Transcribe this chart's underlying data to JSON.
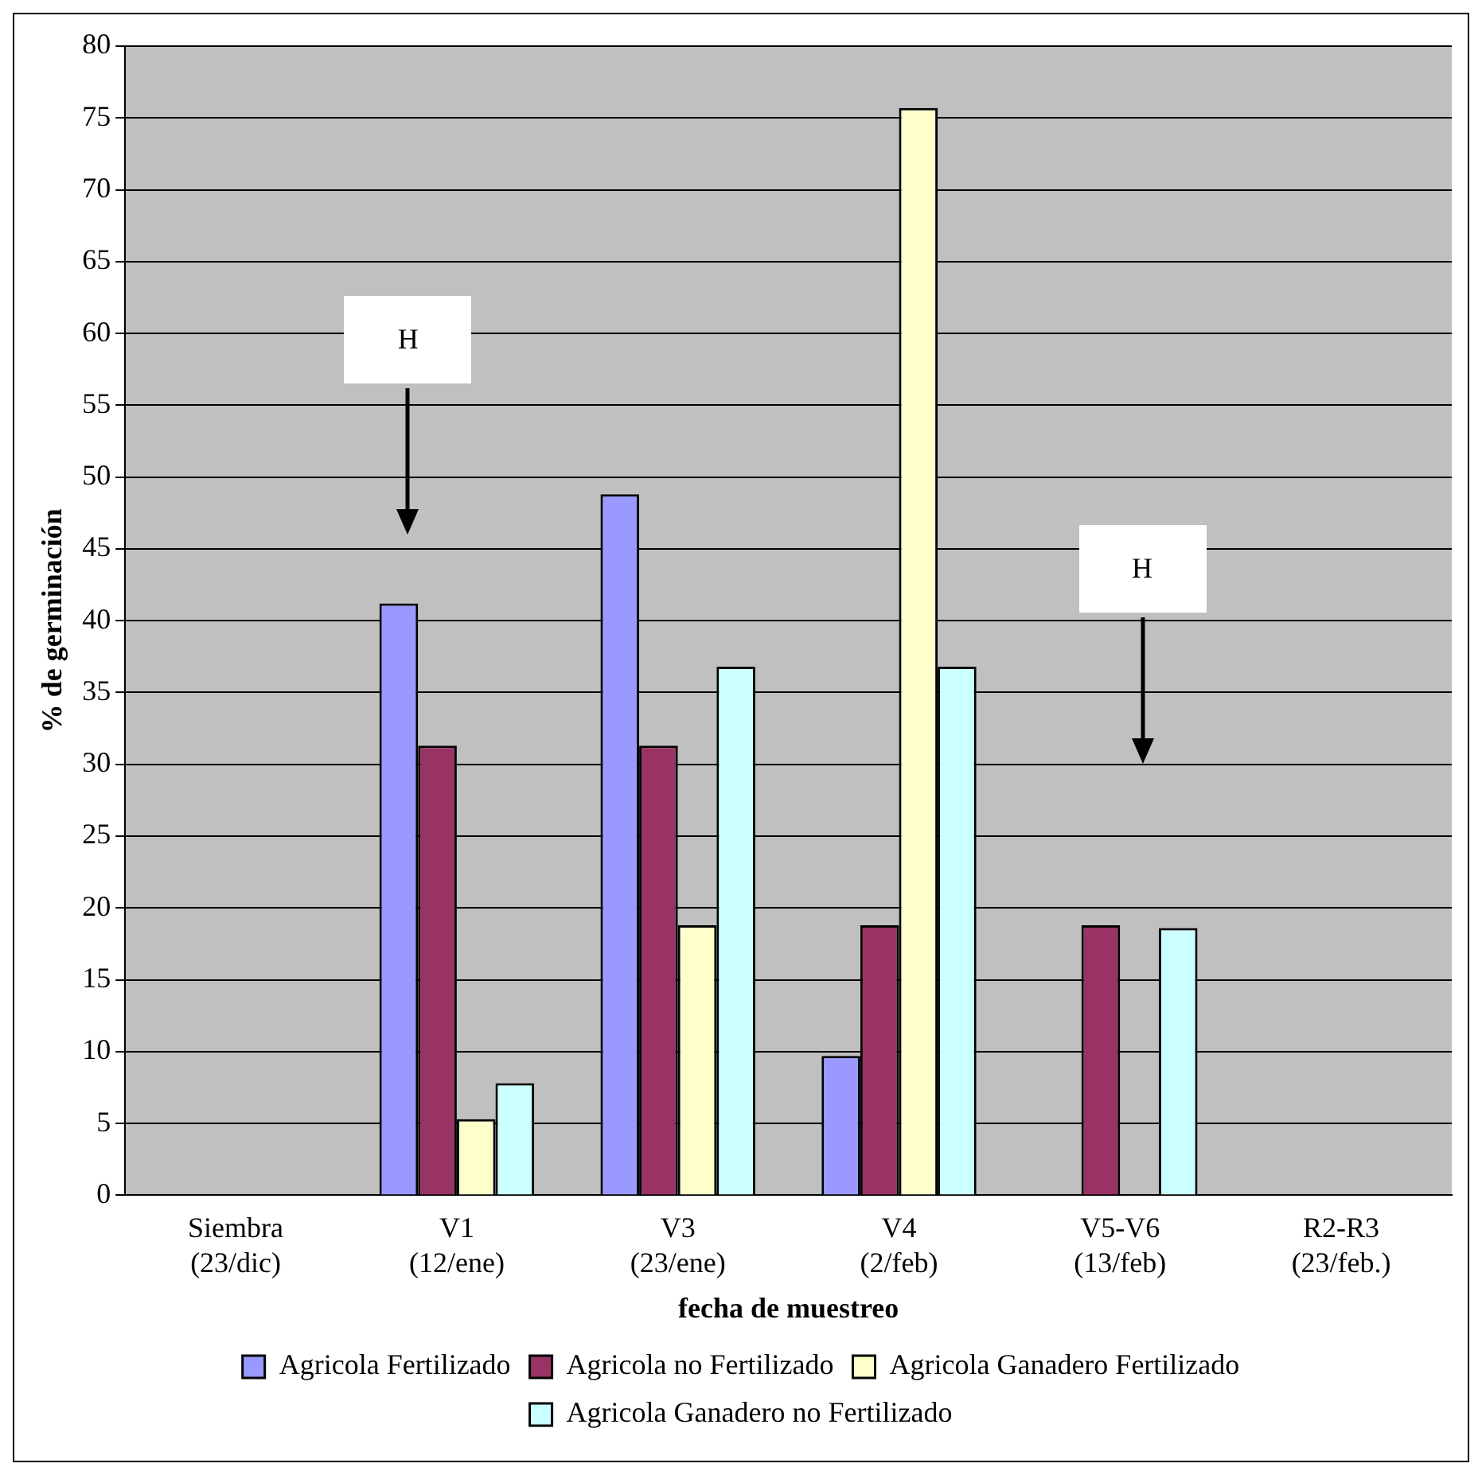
{
  "chart_data": {
    "type": "bar",
    "xlabel": "fecha de muestreo",
    "ylabel": "% de germinación",
    "categories": [
      "Siembra (23/dic)",
      "V1 (12/ene)",
      "V3 (23/ene)",
      "V4 (2/feb)",
      "V5-V6 (13/feb)",
      "R2-R3 (23/feb.)"
    ],
    "series": [
      {
        "name": "Agricola Fertilizado",
        "color": "#9999ff",
        "values": [
          null,
          41.2,
          48.8,
          9.7,
          null,
          null
        ]
      },
      {
        "name": "Agricola no Fertilizado",
        "color": "#993366",
        "values": [
          null,
          31.3,
          31.3,
          18.8,
          18.8,
          null
        ]
      },
      {
        "name": "Agricola Ganadero Fertilizado",
        "color": "#ffffcc",
        "values": [
          null,
          5.3,
          18.8,
          75.7,
          null,
          null
        ]
      },
      {
        "name": "Agricola Ganadero no Fertilizado",
        "color": "#ccffff",
        "values": [
          null,
          7.8,
          36.8,
          36.8,
          18.6,
          null
        ]
      }
    ],
    "ylim": [
      0,
      80
    ],
    "yticks": [
      0,
      5,
      10,
      15,
      20,
      25,
      30,
      35,
      40,
      45,
      50,
      55,
      60,
      65,
      70,
      75,
      80
    ],
    "grid": "y",
    "legend": "bottom",
    "annotations": [
      "H",
      "H"
    ]
  }
}
